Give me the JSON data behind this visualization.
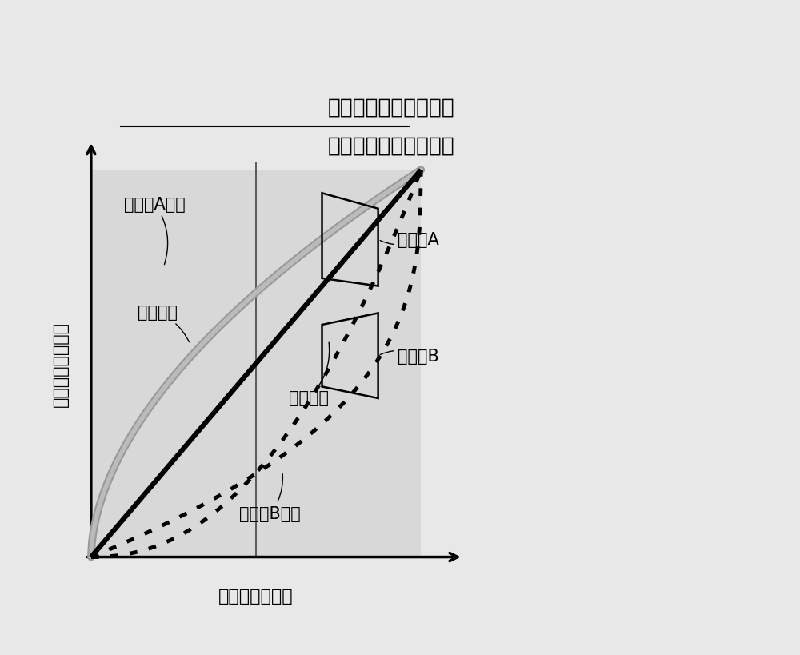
{
  "title_top": "大视角红色子像素曲线",
  "title_bottom": "直视角红色子像素曲线",
  "ylabel": "大角度归一化亮度",
  "xlabel": "前向归一化亮度",
  "label_zhuA_curve": "主像素A曲线",
  "label_shiji": "实际曲线",
  "label_lixiang": "理想曲线",
  "label_ciB_curve": "次像素B曲线",
  "label_zhuA": "主像素A",
  "label_ciB": "次像素B",
  "bg_color": "#e8e8e8",
  "title_fontsize": 19,
  "label_fontsize": 15,
  "axis_label_fontsize": 16
}
